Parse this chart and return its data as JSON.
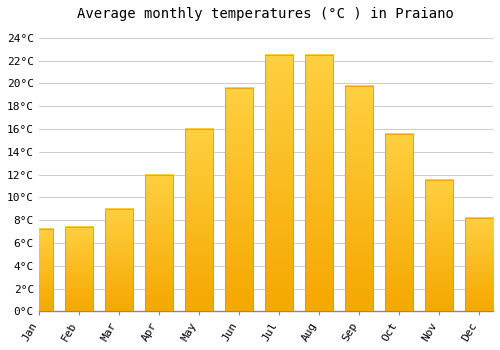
{
  "title": "Average monthly temperatures (°C ) in Praiano",
  "months": [
    "Jan",
    "Feb",
    "Mar",
    "Apr",
    "May",
    "Jun",
    "Jul",
    "Aug",
    "Sep",
    "Oct",
    "Nov",
    "Dec"
  ],
  "temperatures": [
    7.2,
    7.4,
    9.0,
    12.0,
    16.0,
    19.6,
    22.5,
    22.5,
    19.8,
    15.6,
    11.5,
    8.2
  ],
  "bar_color_bottom": "#F5A800",
  "bar_color_top": "#FFD040",
  "bar_edge_color": "#E89000",
  "ylim": [
    0,
    25
  ],
  "yticks": [
    0,
    2,
    4,
    6,
    8,
    10,
    12,
    14,
    16,
    18,
    20,
    22,
    24
  ],
  "background_color": "#ffffff",
  "grid_color": "#cccccc",
  "title_fontsize": 10,
  "tick_fontsize": 8,
  "font_family": "monospace"
}
